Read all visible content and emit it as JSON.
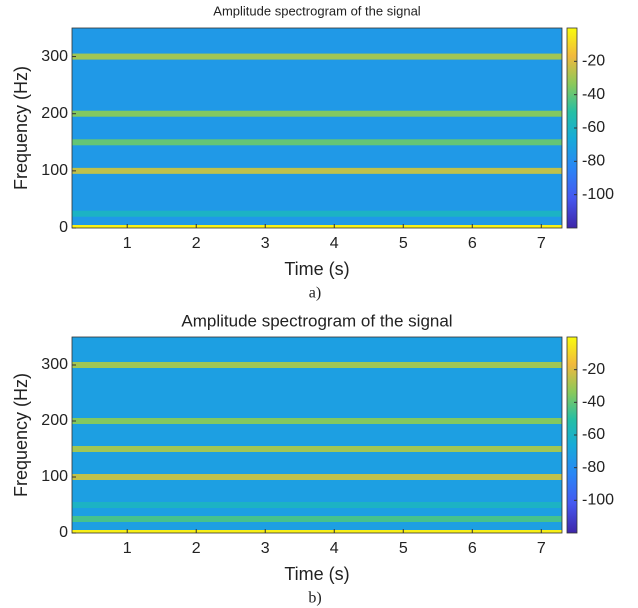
{
  "chart_data": [
    {
      "type": "spectrogram",
      "title": "Amplitude spectrogram of the signal",
      "xlabel": "Time (s)",
      "ylabel": "Frequency (Hz)",
      "caption": "a)",
      "xlim": [
        0.2,
        7.3
      ],
      "xticks": [
        1,
        2,
        3,
        4,
        5,
        6,
        7
      ],
      "ylim": [
        0,
        350
      ],
      "yticks": [
        0,
        100,
        200,
        300
      ],
      "clim": [
        -120,
        0
      ],
      "cticks": [
        -100,
        -80,
        -60,
        -40,
        -20
      ],
      "colormap": "parula",
      "noise_floor": -75,
      "harmonics": [
        {
          "frequency": 0,
          "level": -3
        },
        {
          "frequency": 25,
          "level": -60
        },
        {
          "frequency": 100,
          "level": -25
        },
        {
          "frequency": 150,
          "level": -40
        },
        {
          "frequency": 200,
          "level": -35
        },
        {
          "frequency": 300,
          "level": -30
        }
      ]
    },
    {
      "type": "spectrogram",
      "title": "Amplitude spectrogram of the signal",
      "xlabel": "Time (s)",
      "ylabel": "Frequency (Hz)",
      "caption": "b)",
      "xlim": [
        0.2,
        7.3
      ],
      "xticks": [
        1,
        2,
        3,
        4,
        5,
        6,
        7
      ],
      "ylim": [
        0,
        350
      ],
      "yticks": [
        0,
        100,
        200,
        300
      ],
      "clim": [
        -120,
        0
      ],
      "cticks": [
        -100,
        -80,
        -60,
        -40,
        -20
      ],
      "colormap": "parula",
      "noise_floor": -72,
      "harmonics": [
        {
          "frequency": 0,
          "level": -3
        },
        {
          "frequency": 25,
          "level": -45
        },
        {
          "frequency": 50,
          "level": -60
        },
        {
          "frequency": 100,
          "level": -25
        },
        {
          "frequency": 150,
          "level": -30
        },
        {
          "frequency": 200,
          "level": -35
        },
        {
          "frequency": 300,
          "level": -30
        }
      ]
    }
  ]
}
